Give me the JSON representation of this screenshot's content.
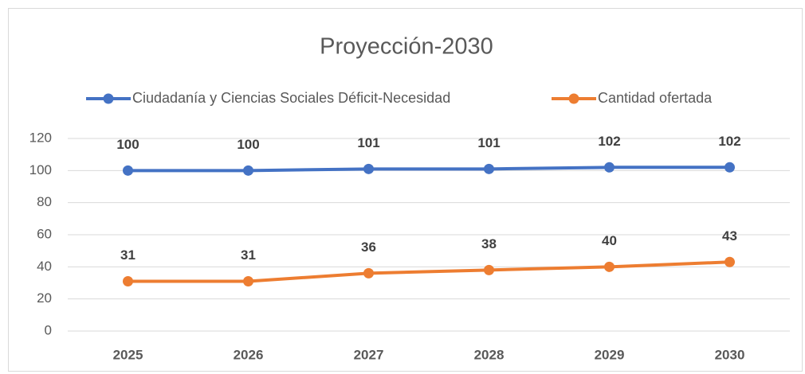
{
  "chart_data": {
    "type": "line",
    "title": "Proyección-2030",
    "categories": [
      "2025",
      "2026",
      "2027",
      "2028",
      "2029",
      "2030"
    ],
    "series": [
      {
        "name": "Ciudadanía y Ciencias Sociales Déficit-Necesidad",
        "color": "#4472c4",
        "values": [
          100,
          100,
          101,
          101,
          102,
          102
        ]
      },
      {
        "name": "Cantidad ofertada",
        "color": "#ed7d31",
        "values": [
          31,
          31,
          36,
          38,
          40,
          43
        ]
      }
    ],
    "ylim": [
      0,
      120
    ],
    "yticks": [
      0,
      20,
      40,
      60,
      80,
      100,
      120
    ],
    "grid": true,
    "legend": "top"
  }
}
